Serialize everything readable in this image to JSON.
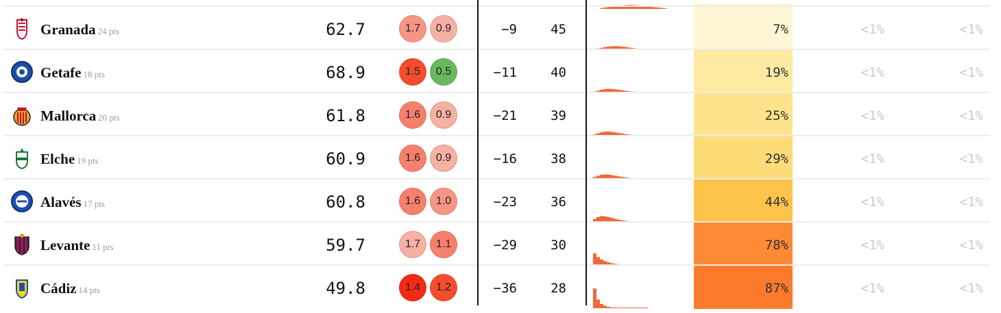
{
  "columns": {
    "relegation_accent_color": "#f2683a"
  },
  "rows": [
    {
      "team": "Granada",
      "points": "24 pts",
      "spi": "62.7",
      "off": "1.7",
      "def": "0.9",
      "off_color": "#f79584",
      "def_color": "#f7b0a4",
      "goal_diff": "−9",
      "proj_pts": "45",
      "relegate": "7%",
      "relegate_color": "#fef6d4",
      "qualify": "<1%",
      "win_league": "<1%",
      "logo_icon": "granada-crest-icon",
      "dist": [
        0.1,
        0.15,
        0.25,
        0.35,
        0.45,
        0.5,
        0.52,
        0.5,
        0.45,
        0.38,
        0.3,
        0.22,
        0.15,
        0.1,
        0.06,
        0.04,
        0.02
      ]
    },
    {
      "team": "Getafe",
      "points": "18 pts",
      "spi": "68.9",
      "off": "1.5",
      "def": "0.5",
      "off_color": "#f74c2e",
      "def_color": "#69b95f",
      "goal_diff": "−11",
      "proj_pts": "40",
      "relegate": "19%",
      "relegate_color": "#feeaa0",
      "qualify": "<1%",
      "win_league": "<1%",
      "logo_icon": "getafe-crest-icon",
      "dist": [
        0.15,
        0.3,
        0.45,
        0.55,
        0.6,
        0.58,
        0.52,
        0.45,
        0.36,
        0.28,
        0.2,
        0.14,
        0.09,
        0.05,
        0.03,
        0.02
      ]
    },
    {
      "team": "Mallorca",
      "points": "20 pts",
      "spi": "61.8",
      "off": "1.6",
      "def": "0.9",
      "off_color": "#f7806d",
      "def_color": "#f7b0a4",
      "goal_diff": "−21",
      "proj_pts": "39",
      "relegate": "25%",
      "relegate_color": "#fee38a",
      "qualify": "<1%",
      "win_league": "<1%",
      "logo_icon": "mallorca-crest-icon",
      "dist": [
        0.2,
        0.4,
        0.55,
        0.65,
        0.66,
        0.6,
        0.52,
        0.43,
        0.34,
        0.25,
        0.18,
        0.12,
        0.07,
        0.04,
        0.02
      ]
    },
    {
      "team": "Elche",
      "points": "19 pts",
      "spi": "60.9",
      "off": "1.6",
      "def": "0.9",
      "off_color": "#f7806d",
      "def_color": "#f7b0a4",
      "goal_diff": "−16",
      "proj_pts": "38",
      "relegate": "29%",
      "relegate_color": "#fddc78",
      "qualify": "<1%",
      "win_league": "<1%",
      "logo_icon": "elche-crest-icon",
      "dist": [
        0.3,
        0.5,
        0.65,
        0.7,
        0.68,
        0.6,
        0.5,
        0.4,
        0.3,
        0.22,
        0.15,
        0.1,
        0.06,
        0.03,
        0.02
      ]
    },
    {
      "team": "Alavés",
      "points": "17 pts",
      "spi": "60.8",
      "off": "1.6",
      "def": "1.0",
      "off_color": "#f7806d",
      "def_color": "#f79584",
      "goal_diff": "−23",
      "proj_pts": "36",
      "relegate": "44%",
      "relegate_color": "#fdc34a",
      "qualify": "<1%",
      "win_league": "<1%",
      "logo_icon": "alaves-crest-icon",
      "dist": [
        0.5,
        0.8,
        0.95,
        0.9,
        0.8,
        0.65,
        0.5,
        0.38,
        0.28,
        0.19,
        0.12,
        0.07,
        0.04,
        0.02
      ]
    },
    {
      "team": "Levante",
      "points": "11 pts",
      "spi": "59.7",
      "off": "1.7",
      "def": "1.1",
      "off_color": "#f7b0a4",
      "def_color": "#f7806d",
      "goal_diff": "−29",
      "proj_pts": "30",
      "relegate": "78%",
      "relegate_color": "#fd8a34",
      "qualify": "<1%",
      "win_league": "<1%",
      "logo_icon": "levante-crest-icon",
      "dist": [
        1.9,
        1.3,
        0.9,
        0.65,
        0.45,
        0.3,
        0.2,
        0.13,
        0.08,
        0.05,
        0.03
      ]
    },
    {
      "team": "Cádiz",
      "points": "14 pts",
      "spi": "49.8",
      "off": "1.4",
      "def": "1.2",
      "off_color": "#f42a14",
      "def_color": "#f74c2e",
      "goal_diff": "−36",
      "proj_pts": "28",
      "relegate": "87%",
      "relegate_color": "#fd7a2c",
      "qualify": "<1%",
      "win_league": "<1%",
      "logo_icon": "cadiz-crest-icon",
      "dist": [
        3.2,
        1.4,
        0.7,
        0.4,
        0.22,
        0.12,
        0.07,
        0.04
      ]
    }
  ]
}
